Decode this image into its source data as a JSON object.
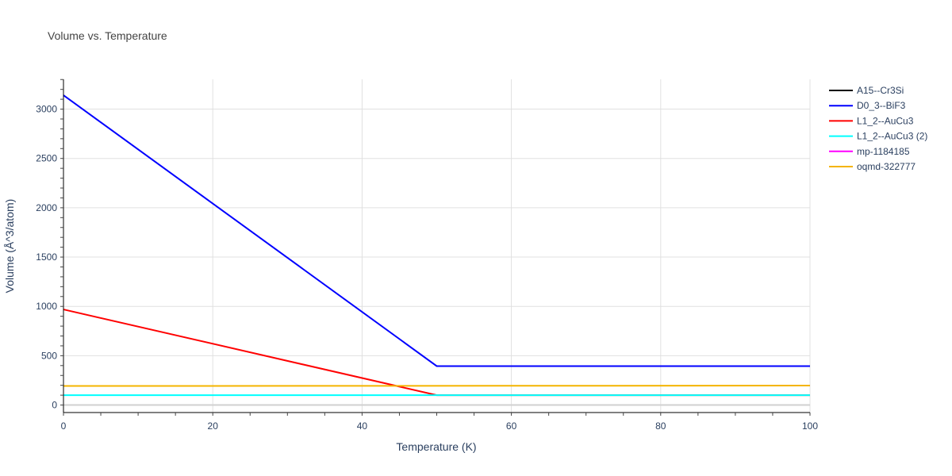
{
  "chart_data": {
    "type": "line",
    "title": "Volume vs. Temperature",
    "xlabel": "Temperature (K)",
    "ylabel": "Volume (Å^3/atom)",
    "xlim": [
      0,
      100
    ],
    "ylim": [
      -76,
      3302
    ],
    "xticks": [
      0,
      20,
      40,
      60,
      80,
      100
    ],
    "yticks": [
      0,
      500,
      1000,
      1500,
      2000,
      2500,
      3000
    ],
    "grid": true,
    "legend_position": "right",
    "series": [
      {
        "name": "A15--Cr3Si",
        "color": "#000000",
        "x": [],
        "y": []
      },
      {
        "name": "D0_3--BiF3",
        "color": "#0000ff",
        "x": [
          0,
          50,
          100
        ],
        "y": [
          3141,
          395,
          395
        ]
      },
      {
        "name": "L1_2--AuCu3",
        "color": "#ff0000",
        "x": [
          0,
          50,
          100
        ],
        "y": [
          969,
          100,
          100
        ]
      },
      {
        "name": "L1_2--AuCu3 (2)",
        "color": "#00ffff",
        "x": [
          0,
          100
        ],
        "y": [
          100,
          100
        ]
      },
      {
        "name": "mp-1184185",
        "color": "#ff00ff",
        "x": [],
        "y": []
      },
      {
        "name": "oqmd-322777",
        "color": "#f4b400",
        "x": [
          0,
          100
        ],
        "y": [
          193,
          197
        ]
      }
    ]
  }
}
